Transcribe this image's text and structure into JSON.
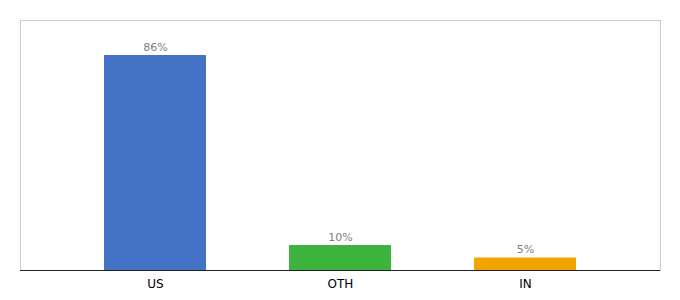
{
  "chart_data": {
    "type": "bar",
    "categories": [
      "US",
      "OTH",
      "IN"
    ],
    "values": [
      86,
      10,
      5
    ],
    "value_labels": [
      "86%",
      "10%",
      "5%"
    ],
    "colors": [
      "#4472c4",
      "#3db33d",
      "#f0a500"
    ],
    "ylim": [
      0,
      100
    ],
    "data_labels": true,
    "tick_labels": "x"
  }
}
